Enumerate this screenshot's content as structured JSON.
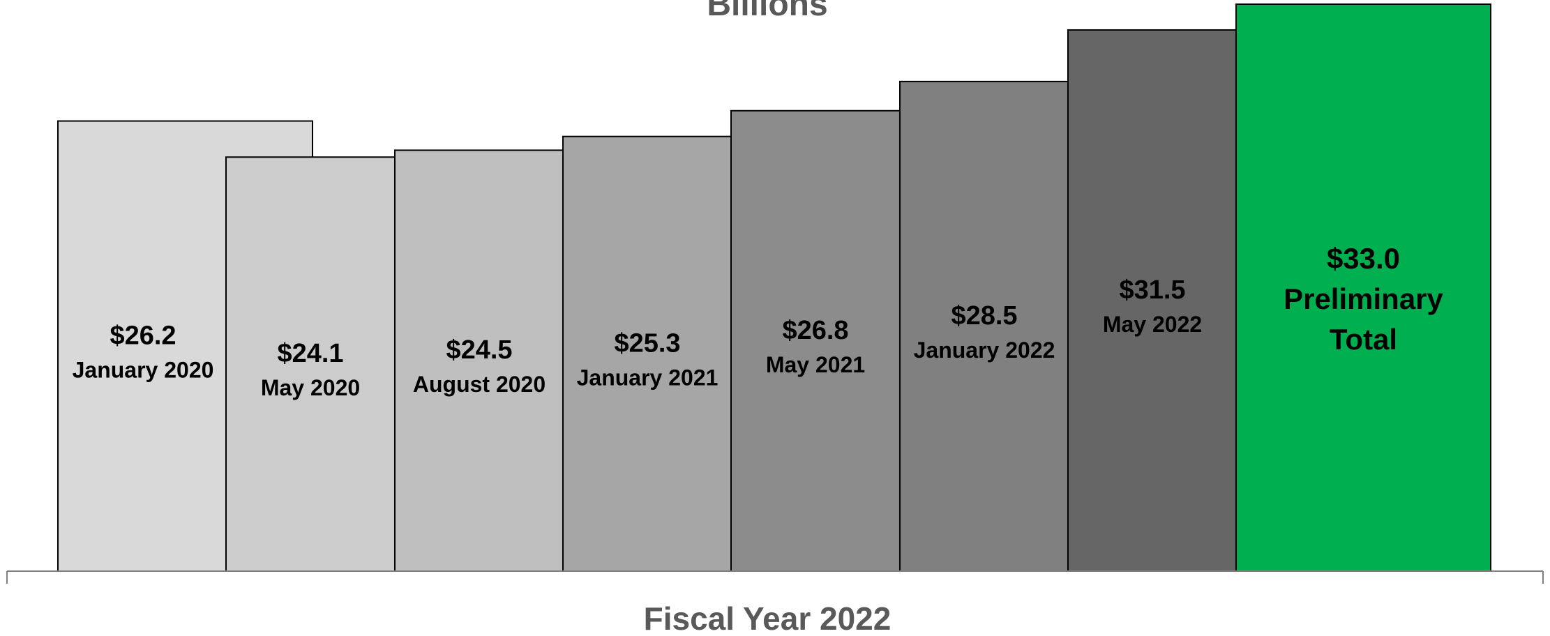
{
  "chart_data": {
    "type": "bar",
    "title": "Billions",
    "xlabel": "Fiscal Year 2022",
    "ylabel": "",
    "unit_prefix": "$",
    "ylim": [
      0,
      33
    ],
    "grid": false,
    "legend": "none",
    "categories": [
      "January 2020",
      "May 2020",
      "August 2020",
      "January 2021",
      "May 2021",
      "January 2022",
      "May 2022",
      "Preliminary Total"
    ],
    "values": [
      26.2,
      24.1,
      24.5,
      25.3,
      26.8,
      28.5,
      31.5,
      33.0
    ],
    "value_labels": [
      "$26.2",
      "$24.1",
      "$24.5",
      "$25.3",
      "$26.8",
      "$28.5",
      "$31.5",
      "$33.0"
    ],
    "last_bar_label_lines": [
      "Preliminary",
      "Total"
    ],
    "colors": {
      "bars": [
        "#d9d9d9",
        "#cccccc",
        "#bfbfbf",
        "#a6a6a6",
        "#8c8c8c",
        "#808080",
        "#666666",
        "#00b050"
      ],
      "label_text": "#000000",
      "title_text": "#595959",
      "axis": "#7f7f7f",
      "bar_outline": "#000000"
    }
  }
}
